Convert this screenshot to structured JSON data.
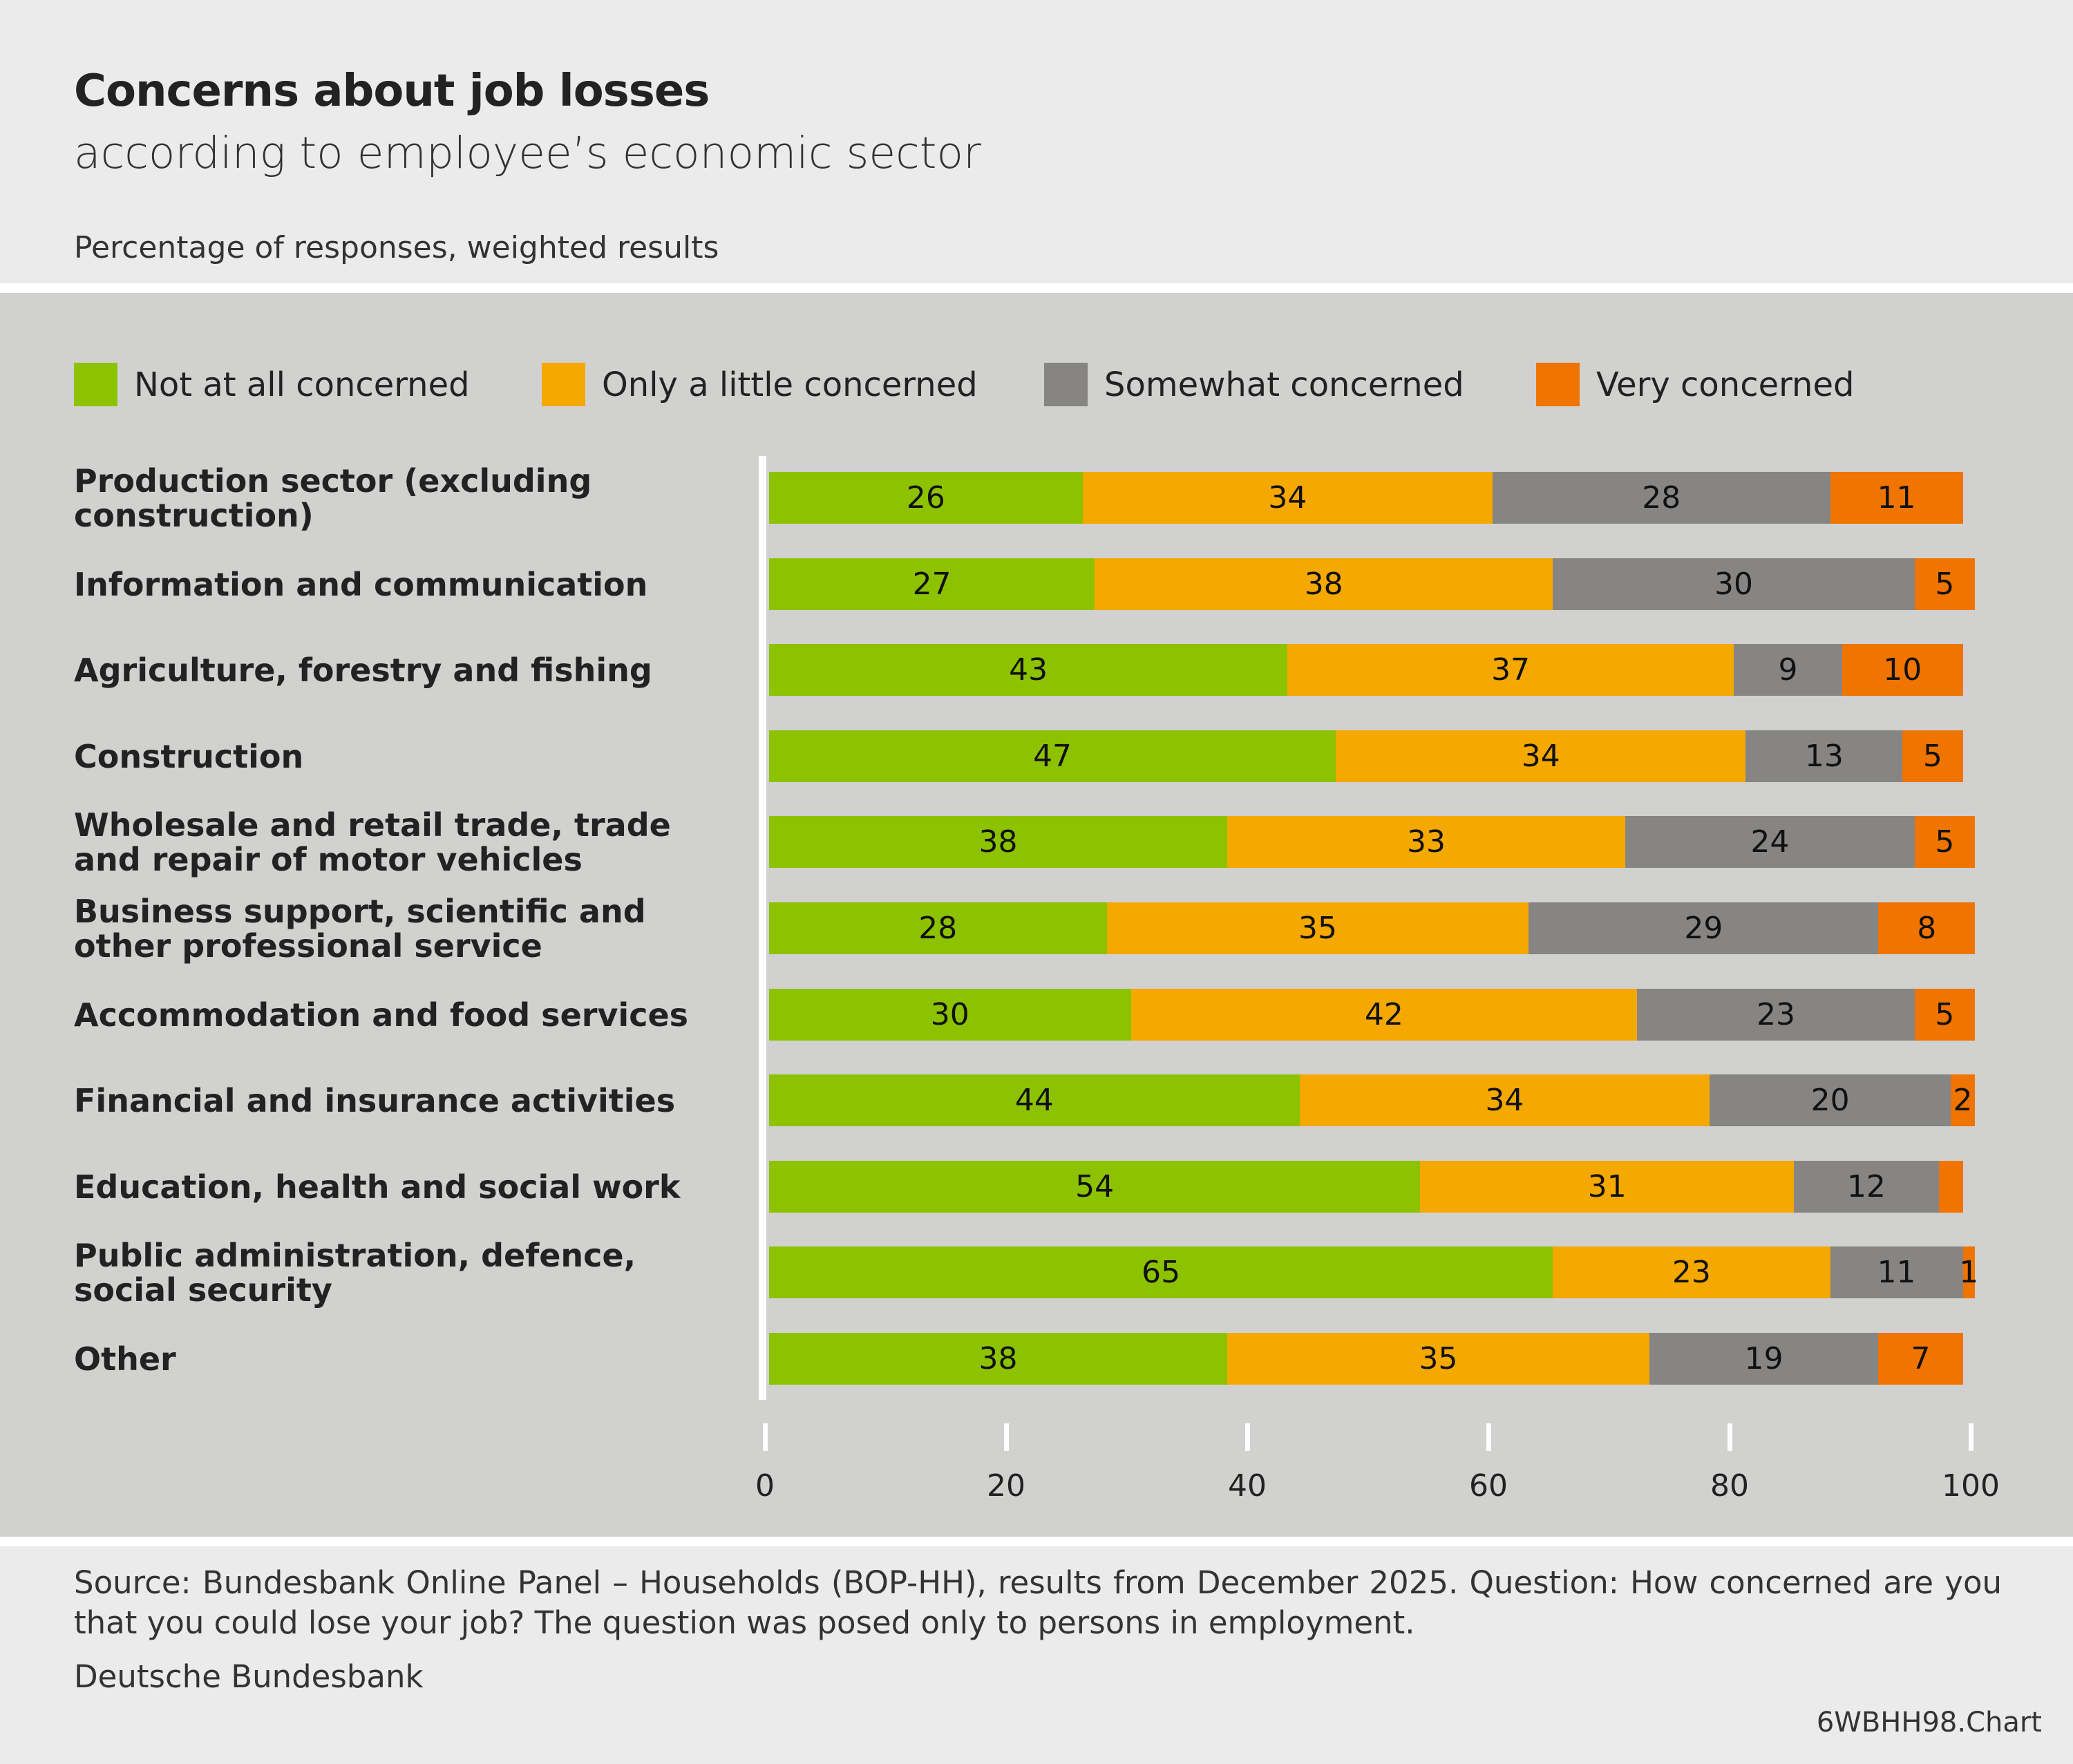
{
  "header": {
    "title": "Concerns about job losses",
    "subtitle": "according to employee’s economic sector",
    "note": "Percentage of responses, weighted results"
  },
  "footer": {
    "source": "Source: Bundesbank Online Panel – Households (BOP-HH), results from December 2025. Question: How concerned are you that you could lose your job? The question was posed only to persons in employment.",
    "org": "Deutsche Bundesbank",
    "code": "6WBHH98.Chart"
  },
  "chart_data": {
    "type": "bar",
    "orientation": "horizontal",
    "stacked": true,
    "xlim": [
      0,
      100
    ],
    "x_ticks": [
      "0",
      "20",
      "40",
      "60",
      "80",
      "100"
    ],
    "legend": "top",
    "categories": [
      "Production sector (excluding construction)",
      "Information and communication",
      "Agriculture, forestry and fishing",
      "Construction",
      "Wholesale and retail trade, trade and repair of motor vehicles",
      "Business support, scientific and other professional service",
      "Accommodation and food services",
      "Financial and insurance activities",
      "Education, health and social work",
      "Public administration, defence, social security",
      "Other"
    ],
    "series": [
      {
        "name": "Not at all concerned",
        "color": "#8dc200",
        "values": [
          26,
          27,
          43,
          47,
          38,
          28,
          30,
          44,
          54,
          65,
          38
        ]
      },
      {
        "name": "Only a little concerned",
        "color": "#f5a800",
        "values": [
          34,
          38,
          37,
          34,
          33,
          35,
          42,
          34,
          31,
          23,
          35
        ]
      },
      {
        "name": "Somewhat concerned",
        "color": "#878583",
        "values": [
          28,
          30,
          9,
          13,
          24,
          29,
          23,
          20,
          12,
          11,
          19
        ]
      },
      {
        "name": "Very concerned",
        "color": "#ef7400",
        "values": [
          11,
          5,
          10,
          5,
          5,
          8,
          5,
          2,
          2,
          1,
          7
        ],
        "unlabeled": [
          false,
          false,
          false,
          false,
          false,
          false,
          false,
          false,
          true,
          false,
          false
        ]
      }
    ]
  }
}
